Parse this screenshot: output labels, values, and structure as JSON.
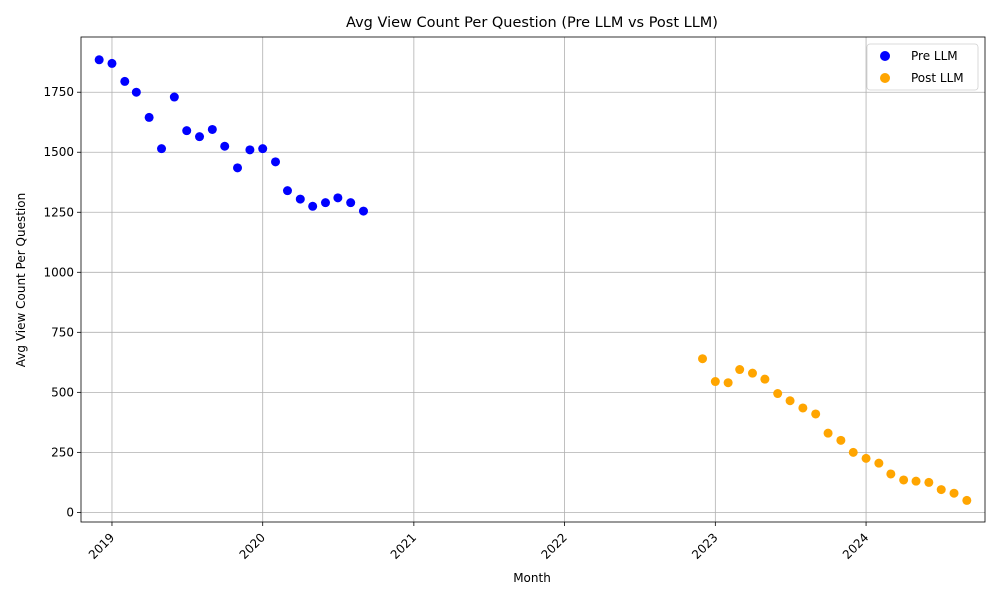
{
  "chart_data": {
    "type": "scatter",
    "title": "Avg View Count Per Question (Pre LLM vs Post LLM)",
    "xlabel": "Month",
    "ylabel": "Avg View Count Per Question",
    "x_axis": "date",
    "xlim": [
      "2018-10-18",
      "2024-10-15"
    ],
    "ylim": [
      -40,
      1980
    ],
    "x_ticks": [
      "2019-01-01",
      "2020-01-01",
      "2021-01-01",
      "2022-01-01",
      "2023-01-01",
      "2024-01-01"
    ],
    "x_tick_labels": [
      "2019",
      "2020",
      "2021",
      "2022",
      "2023",
      "2024"
    ],
    "y_ticks": [
      0,
      250,
      500,
      750,
      1000,
      1250,
      1500,
      1750
    ],
    "y_tick_labels": [
      "0",
      "250",
      "500",
      "750",
      "1000",
      "1250",
      "1500",
      "1750"
    ],
    "grid": true,
    "legend_position": "top-right",
    "series": [
      {
        "name": "Pre LLM",
        "color": "#0000ff",
        "points": [
          {
            "x": "2018-12-01",
            "y": 1885
          },
          {
            "x": "2019-01-01",
            "y": 1870
          },
          {
            "x": "2019-02-01",
            "y": 1795
          },
          {
            "x": "2019-03-01",
            "y": 1750
          },
          {
            "x": "2019-04-01",
            "y": 1645
          },
          {
            "x": "2019-05-01",
            "y": 1515
          },
          {
            "x": "2019-06-01",
            "y": 1730
          },
          {
            "x": "2019-07-01",
            "y": 1590
          },
          {
            "x": "2019-08-01",
            "y": 1565
          },
          {
            "x": "2019-09-01",
            "y": 1595
          },
          {
            "x": "2019-10-01",
            "y": 1525
          },
          {
            "x": "2019-11-01",
            "y": 1435
          },
          {
            "x": "2019-12-01",
            "y": 1510
          },
          {
            "x": "2020-01-01",
            "y": 1515
          },
          {
            "x": "2020-02-01",
            "y": 1460
          },
          {
            "x": "2020-03-01",
            "y": 1340
          },
          {
            "x": "2020-04-01",
            "y": 1305
          },
          {
            "x": "2020-05-01",
            "y": 1275
          },
          {
            "x": "2020-06-01",
            "y": 1290
          },
          {
            "x": "2020-07-01",
            "y": 1310
          },
          {
            "x": "2020-08-01",
            "y": 1290
          },
          {
            "x": "2020-09-01",
            "y": 1255
          }
        ]
      },
      {
        "name": "Post LLM",
        "color": "#ffa500",
        "points": [
          {
            "x": "2022-12-01",
            "y": 640
          },
          {
            "x": "2023-01-01",
            "y": 545
          },
          {
            "x": "2023-02-01",
            "y": 540
          },
          {
            "x": "2023-03-01",
            "y": 595
          },
          {
            "x": "2023-04-01",
            "y": 580
          },
          {
            "x": "2023-05-01",
            "y": 555
          },
          {
            "x": "2023-06-01",
            "y": 495
          },
          {
            "x": "2023-07-01",
            "y": 465
          },
          {
            "x": "2023-08-01",
            "y": 435
          },
          {
            "x": "2023-09-01",
            "y": 410
          },
          {
            "x": "2023-10-01",
            "y": 330
          },
          {
            "x": "2023-11-01",
            "y": 300
          },
          {
            "x": "2023-12-01",
            "y": 250
          },
          {
            "x": "2024-01-01",
            "y": 225
          },
          {
            "x": "2024-02-01",
            "y": 205
          },
          {
            "x": "2024-03-01",
            "y": 160
          },
          {
            "x": "2024-04-01",
            "y": 135
          },
          {
            "x": "2024-05-01",
            "y": 130
          },
          {
            "x": "2024-06-01",
            "y": 125
          },
          {
            "x": "2024-07-01",
            "y": 95
          },
          {
            "x": "2024-08-01",
            "y": 80
          },
          {
            "x": "2024-09-01",
            "y": 50
          }
        ]
      }
    ]
  }
}
